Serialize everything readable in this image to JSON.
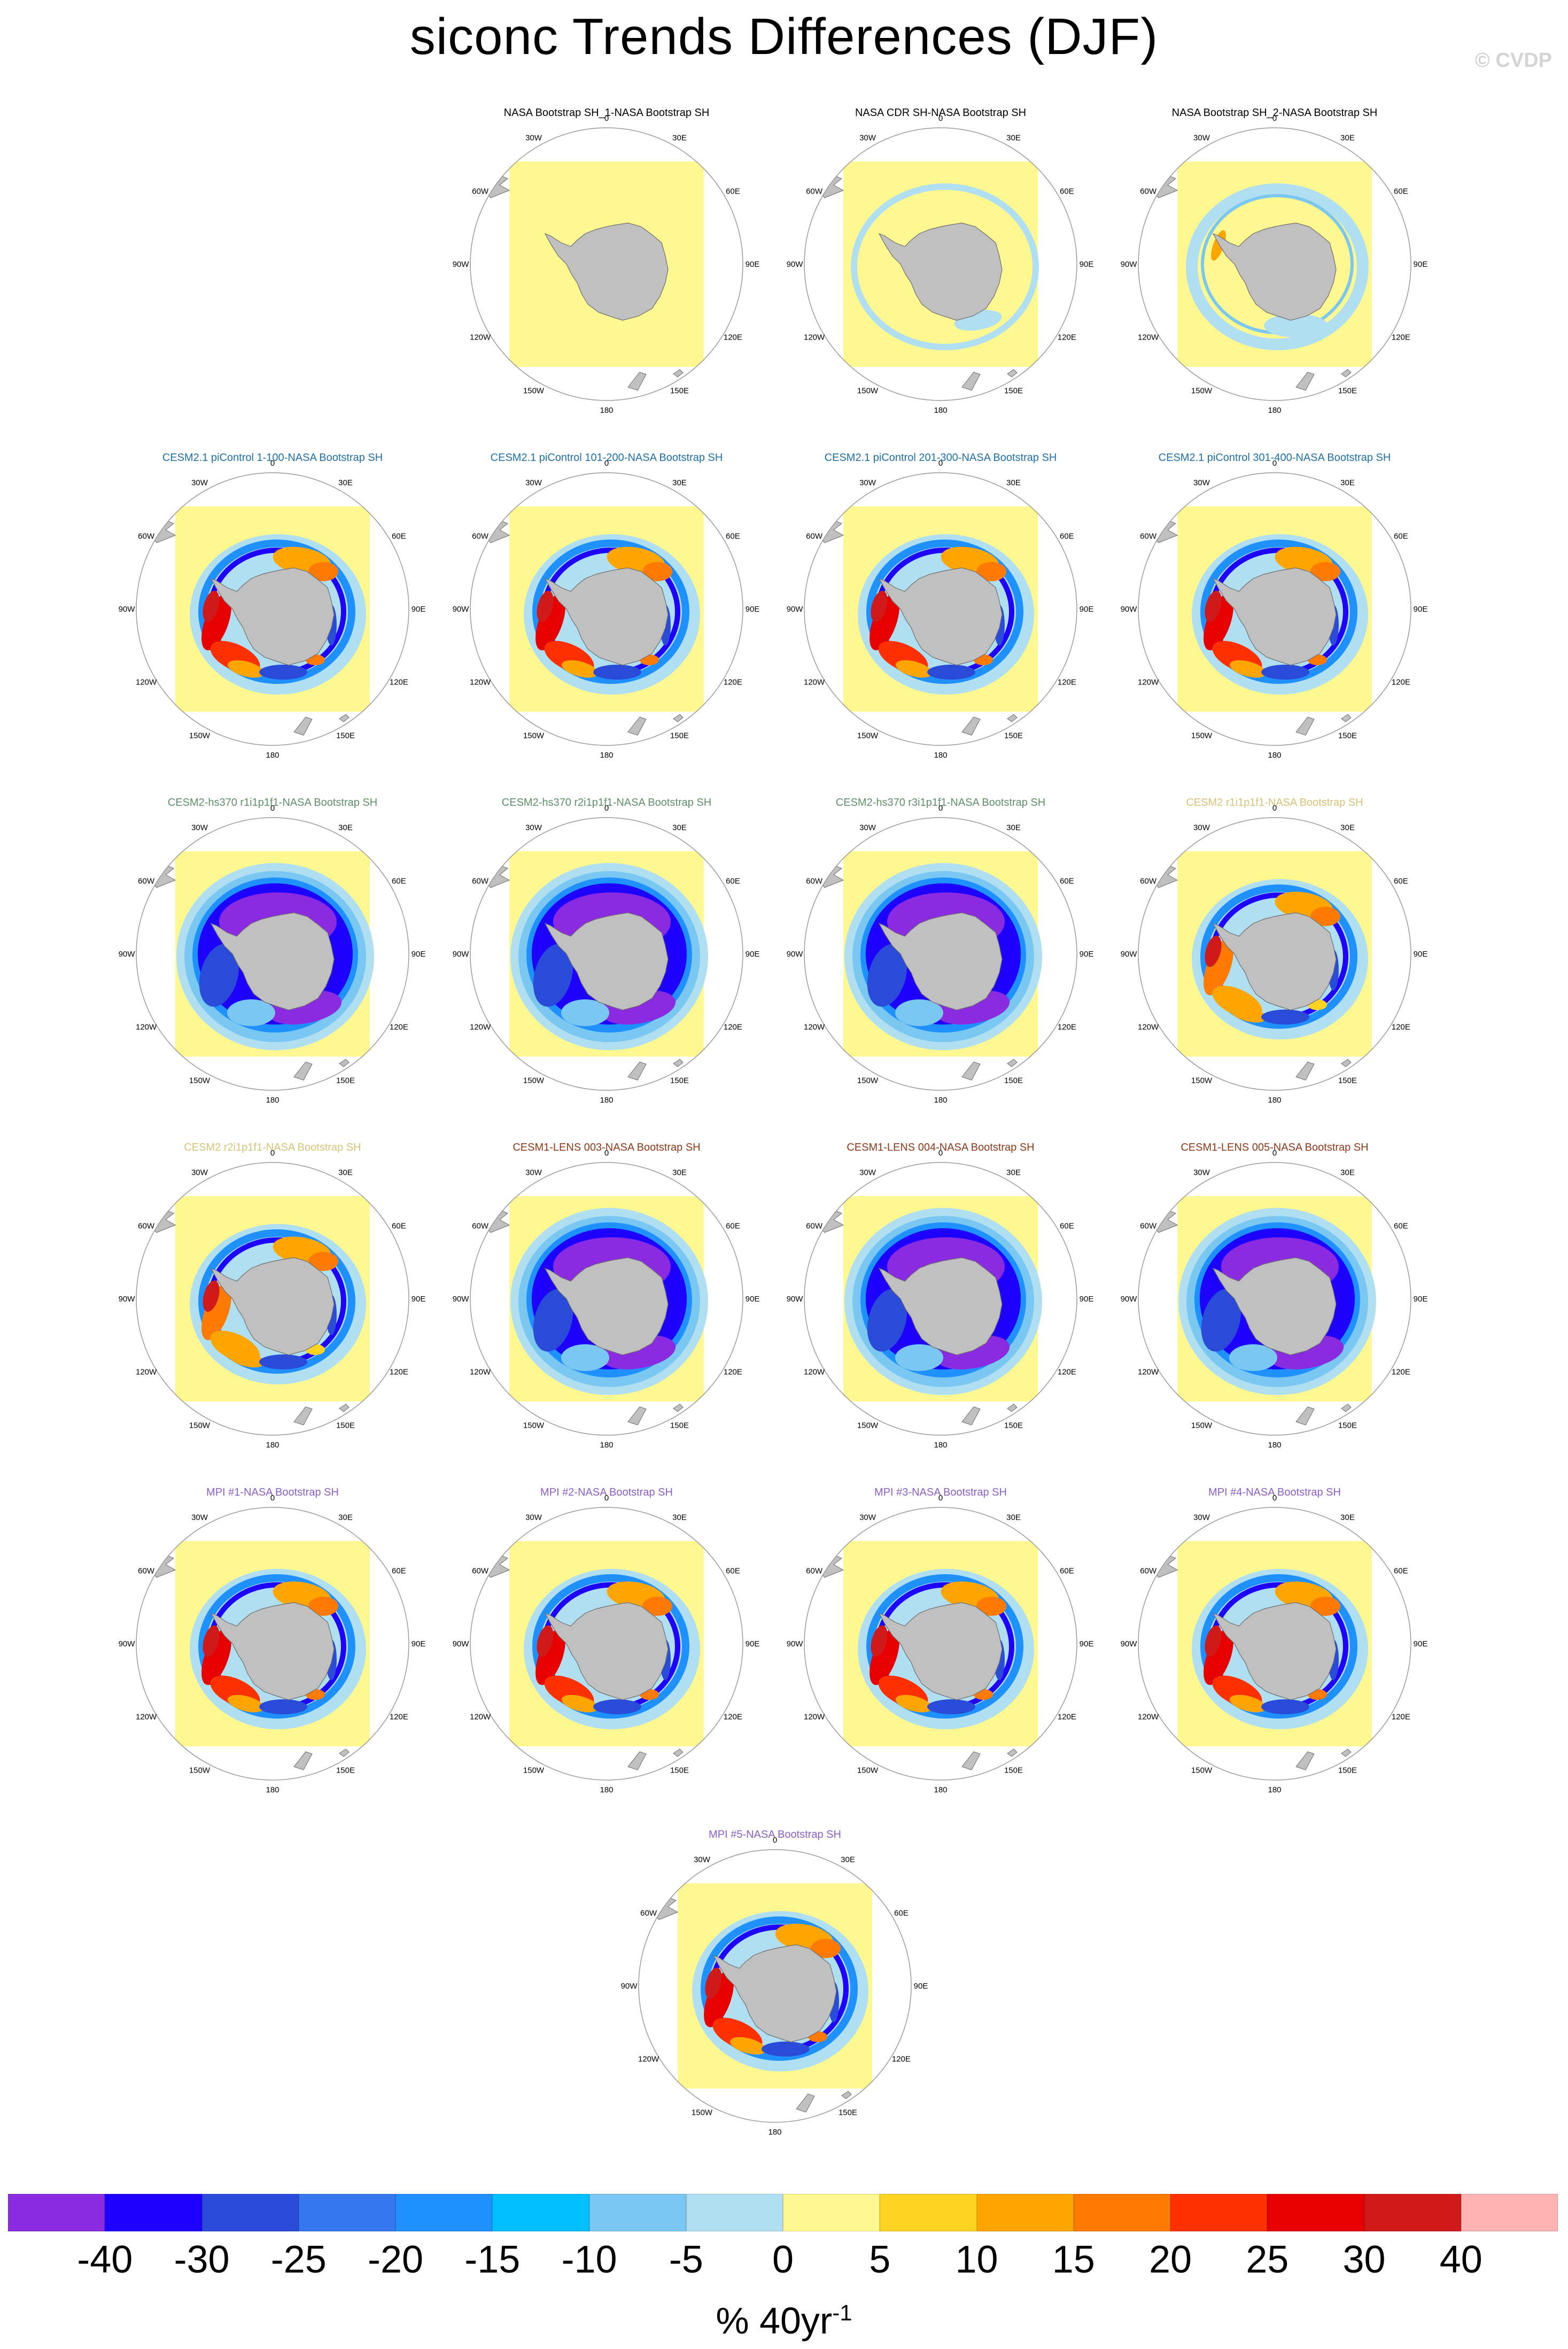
{
  "title": "siconc Trends Differences (DJF)",
  "watermark": "© CVDP",
  "colors": {
    "land": "#c0c0c0",
    "coast": "#6e6e6e",
    "circle": "#9a9a9a",
    "neutral": "#fff78f"
  },
  "longitude_labels": [
    "0",
    "30E",
    "60E",
    "90E",
    "120E",
    "150E",
    "180",
    "150W",
    "120W",
    "90W",
    "60W",
    "30W"
  ],
  "panels": [
    {
      "title": "NASA Bootstrap SH_1-NASA Bootstrap SH",
      "title_color": "#000000",
      "pattern": "none"
    },
    {
      "title": "NASA CDR SH-NASA Bootstrap SH",
      "title_color": "#000000",
      "pattern": "cdr"
    },
    {
      "title": "NASA Bootstrap SH_2-NASA Bootstrap SH",
      "title_color": "#000000",
      "pattern": "bs2"
    },
    {
      "title": "CESM2.1 piControl 1-100-NASA Bootstrap SH",
      "title_color": "#1f6fa8",
      "pattern": "dipole"
    },
    {
      "title": "CESM2.1 piControl 101-200-NASA Bootstrap SH",
      "title_color": "#1f6fa8",
      "pattern": "dipole"
    },
    {
      "title": "CESM2.1 piControl 201-300-NASA Bootstrap SH",
      "title_color": "#1f6fa8",
      "pattern": "dipole"
    },
    {
      "title": "CESM2.1 piControl 301-400-NASA Bootstrap SH",
      "title_color": "#1f6fa8",
      "pattern": "dipole"
    },
    {
      "title": "CESM2-hs370 r1i1p1f1-NASA Bootstrap SH",
      "title_color": "#5f8f68",
      "pattern": "negring"
    },
    {
      "title": "CESM2-hs370 r2i1p1f1-NASA Bootstrap SH",
      "title_color": "#5f8f68",
      "pattern": "negring"
    },
    {
      "title": "CESM2-hs370 r3i1p1f1-NASA Bootstrap SH",
      "title_color": "#5f8f68",
      "pattern": "negring"
    },
    {
      "title": "CESM2 r1i1p1f1-NASA Bootstrap SH",
      "title_color": "#d6c377",
      "pattern": "dipole_weak"
    },
    {
      "title": "CESM2 r2i1p1f1-NASA Bootstrap SH",
      "title_color": "#d6c377",
      "pattern": "dipole_weak"
    },
    {
      "title": "CESM1-LENS 003-NASA Bootstrap SH",
      "title_color": "#8b3a1a",
      "pattern": "negring"
    },
    {
      "title": "CESM1-LENS 004-NASA Bootstrap SH",
      "title_color": "#8b3a1a",
      "pattern": "negring"
    },
    {
      "title": "CESM1-LENS 005-NASA Bootstrap SH",
      "title_color": "#8b3a1a",
      "pattern": "negring"
    },
    {
      "title": "MPI #1-NASA Bootstrap SH",
      "title_color": "#8a5fc9",
      "pattern": "dipole"
    },
    {
      "title": "MPI #2-NASA Bootstrap SH",
      "title_color": "#8a5fc9",
      "pattern": "dipole"
    },
    {
      "title": "MPI #3-NASA Bootstrap SH",
      "title_color": "#8a5fc9",
      "pattern": "dipole"
    },
    {
      "title": "MPI #4-NASA Bootstrap SH",
      "title_color": "#8a5fc9",
      "pattern": "dipole"
    },
    {
      "title": "MPI #5-NASA Bootstrap SH",
      "title_color": "#8a5fc9",
      "pattern": "dipole"
    }
  ],
  "colorbar": {
    "colors": [
      "#8a2be2",
      "#1e00ff",
      "#2a4bd8",
      "#3577ee",
      "#1e90ff",
      "#00bfff",
      "#7ac8f2",
      "#b0dff2",
      "#fff78f",
      "#ffd320",
      "#ffa500",
      "#ff7a00",
      "#ff3000",
      "#e60000",
      "#d01a1a",
      "#ffb2b2"
    ],
    "labels": [
      "-40",
      "-30",
      "-25",
      "-20",
      "-15",
      "-10",
      "-5",
      "0",
      "5",
      "10",
      "15",
      "20",
      "25",
      "30",
      "40"
    ]
  },
  "units": {
    "base": "% 40yr",
    "sup": "-1"
  }
}
